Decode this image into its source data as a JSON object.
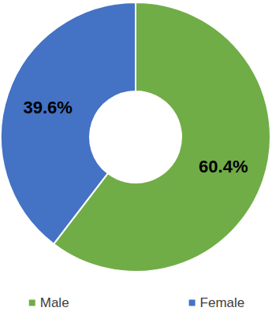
{
  "chart_data": {
    "type": "pie",
    "categories": [
      "Male",
      "Female"
    ],
    "values": [
      60.4,
      39.6
    ],
    "value_labels": [
      "60.4%",
      "39.6%"
    ],
    "colors": [
      "#70ad47",
      "#4472c4"
    ],
    "data_labels": true,
    "legend": "bottom"
  }
}
